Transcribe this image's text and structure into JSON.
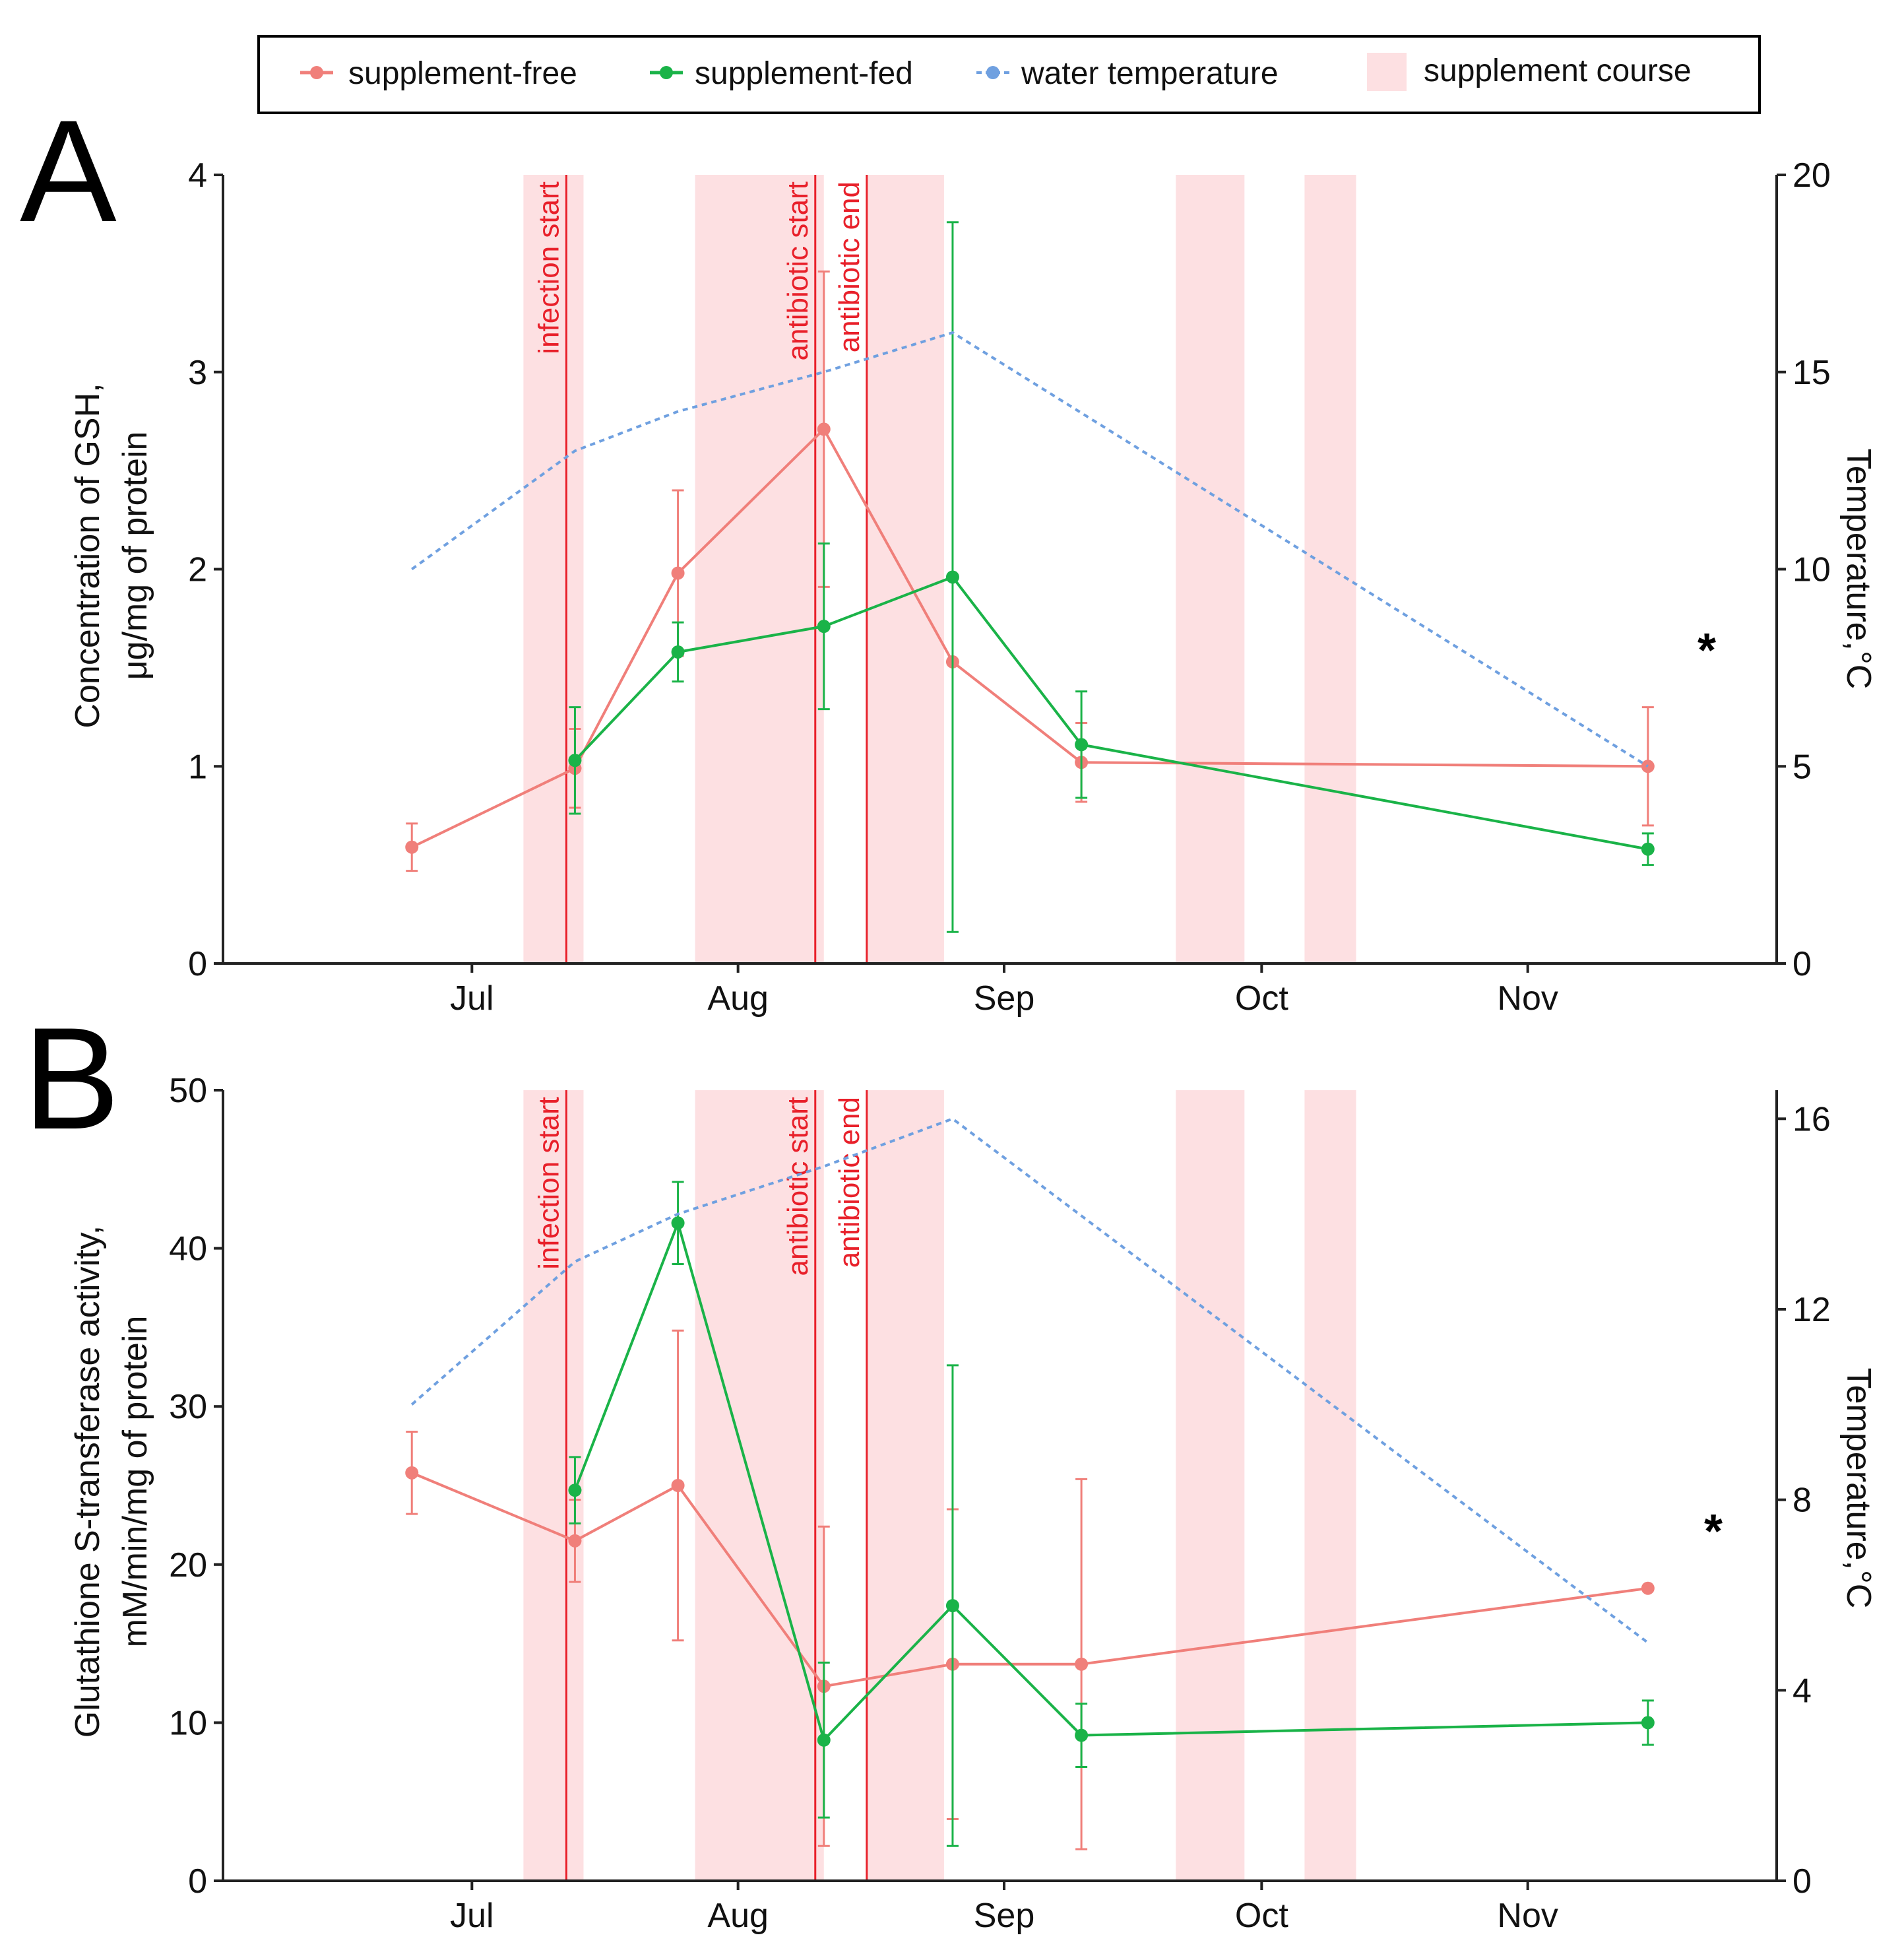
{
  "legend": {
    "items": [
      {
        "label": "supplement-free",
        "color": "#f07f7a",
        "kind": "line"
      },
      {
        "label": "supplement-fed",
        "color": "#1ab348",
        "kind": "line"
      },
      {
        "label": "water temperature",
        "color": "#6fa0e0",
        "kind": "dashed"
      },
      {
        "label": "supplement course",
        "color": "#fde0e2",
        "kind": "box"
      }
    ]
  },
  "colors": {
    "free": "#f07f7a",
    "fed": "#1ab348",
    "temp": "#6fa0e0",
    "course": "#fde0e2",
    "event": "#e8202a"
  },
  "months": {
    "labels": [
      "Jul",
      "Aug",
      "Sep",
      "Oct",
      "Nov"
    ],
    "days": [
      1,
      32,
      63,
      93,
      124
    ]
  },
  "chart_data": [
    {
      "panel": "A",
      "type": "line",
      "x_unit": "day of year 2020 offset from Jul 1",
      "ylabel_line1": "Concentration of GSH,",
      "ylabel_line2": "μg/mg of protein",
      "ylabel_right": "Temperature,°C",
      "ylim": [
        0,
        4
      ],
      "yticks": [
        0,
        1,
        2,
        3,
        4
      ],
      "y2lim": [
        0,
        20
      ],
      "y2ticks": [
        0,
        5,
        10,
        15,
        20
      ],
      "course_periods": [
        [
          7,
          14
        ],
        [
          27,
          42
        ],
        [
          47,
          56
        ],
        [
          83,
          91
        ],
        [
          98,
          104
        ]
      ],
      "events": [
        {
          "label": "infection start",
          "x": 12
        },
        {
          "label": "antibiotic start",
          "x": 41
        },
        {
          "label": "antibiotic end",
          "x": 47
        }
      ],
      "series": [
        {
          "name": "supplement-free",
          "x": [
            -6,
            13,
            25,
            42,
            57,
            72,
            138
          ],
          "y": [
            0.59,
            0.99,
            1.98,
            2.71,
            1.53,
            1.02,
            1.0
          ],
          "err": [
            0.12,
            0.2,
            0.42,
            0.8,
            0,
            0.2,
            0.3
          ]
        },
        {
          "name": "supplement-fed",
          "x": [
            13,
            25,
            42,
            57,
            72,
            138
          ],
          "y": [
            1.03,
            1.58,
            1.71,
            1.96,
            1.11,
            0.58
          ],
          "err": [
            0.27,
            0.15,
            0.42,
            1.8,
            0.27,
            0.08
          ]
        },
        {
          "name": "water temperature",
          "x": [
            -6,
            13,
            25,
            42,
            57,
            138
          ],
          "y": [
            10,
            13,
            14,
            15,
            16,
            5
          ]
        }
      ],
      "annotation": {
        "text": "*",
        "x": 138
      }
    },
    {
      "panel": "B",
      "type": "line",
      "ylabel_line1": "Glutathione S-transferase activity,",
      "ylabel_line2": "mM/min/mg of protein",
      "ylabel_right": "Temperature,°C",
      "ylim": [
        0,
        50
      ],
      "yticks": [
        0,
        10,
        20,
        30,
        40,
        50
      ],
      "y2lim": [
        0,
        16.6
      ],
      "y2ticks": [
        0,
        4,
        8,
        12,
        16
      ],
      "course_periods": [
        [
          7,
          14
        ],
        [
          27,
          42
        ],
        [
          47,
          56
        ],
        [
          83,
          91
        ],
        [
          98,
          104
        ]
      ],
      "events": [
        {
          "label": "infection start",
          "x": 12
        },
        {
          "label": "antibiotic start",
          "x": 41
        },
        {
          "label": "antibiotic end",
          "x": 47
        }
      ],
      "series": [
        {
          "name": "supplement-free",
          "x": [
            -6,
            13,
            25,
            42,
            57,
            72,
            138
          ],
          "y": [
            25.8,
            21.5,
            25.0,
            12.3,
            13.7,
            13.7,
            18.5
          ],
          "err": [
            2.6,
            2.6,
            9.8,
            10.1,
            9.8,
            11.7,
            0
          ]
        },
        {
          "name": "supplement-fed",
          "x": [
            13,
            25,
            42,
            57,
            72,
            138
          ],
          "y": [
            24.7,
            41.6,
            8.9,
            17.4,
            9.2,
            10.0
          ],
          "err": [
            2.1,
            2.6,
            4.9,
            15.2,
            2.0,
            1.4
          ]
        },
        {
          "name": "water temperature",
          "x": [
            -6,
            13,
            25,
            42,
            57,
            138
          ],
          "y": [
            10,
            13,
            14,
            15,
            16,
            5
          ]
        }
      ],
      "annotation": {
        "text": "*",
        "x": 138
      }
    }
  ]
}
